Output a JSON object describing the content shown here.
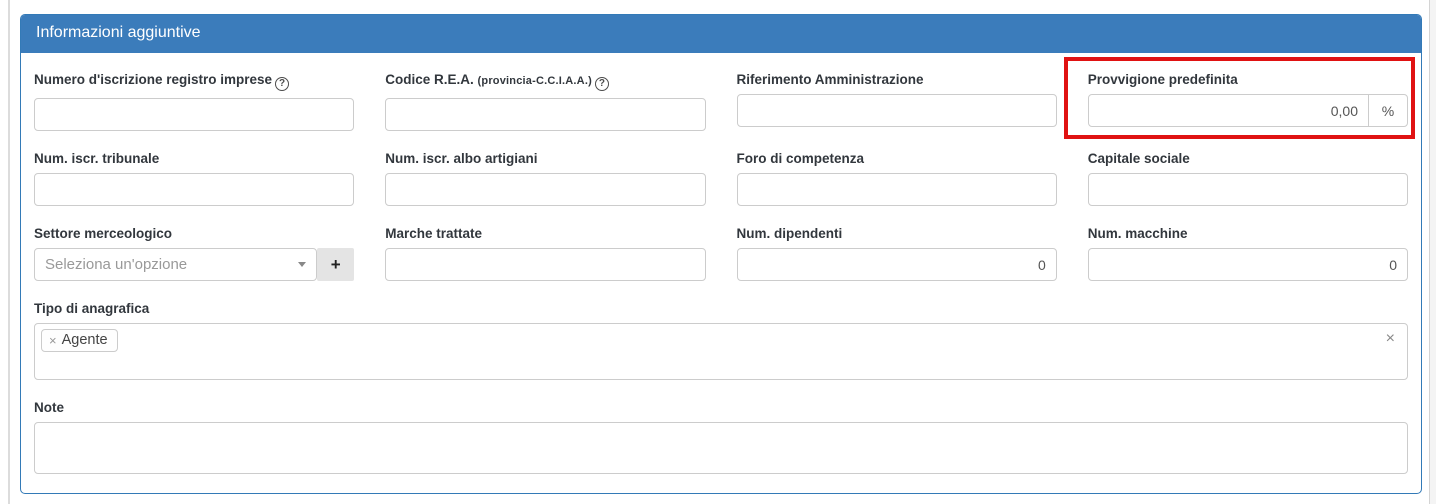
{
  "colors": {
    "header_bg": "#3b7cbb",
    "panel_border": "#337ab7",
    "highlight_red": "#e01212"
  },
  "panel": {
    "title": "Informazioni aggiuntive"
  },
  "help_icon_glyph": "?",
  "fields": {
    "registro_imprese": {
      "label": "Numero d'iscrizione registro imprese",
      "value": ""
    },
    "codice_rea": {
      "label": "Codice R.E.A.",
      "label_small": "(provincia-C.C.I.A.A.)",
      "value": ""
    },
    "riferimento_amministrazione": {
      "label": "Riferimento Amministrazione",
      "value": ""
    },
    "provvigione_predefinita": {
      "label": "Provvigione predefinita",
      "value": "0,00",
      "addon": "%"
    },
    "num_iscr_tribunale": {
      "label": "Num. iscr. tribunale",
      "value": ""
    },
    "num_iscr_albo_artigiani": {
      "label": "Num. iscr. albo artigiani",
      "value": ""
    },
    "foro_di_competenza": {
      "label": "Foro di competenza",
      "value": ""
    },
    "capitale_sociale": {
      "label": "Capitale sociale",
      "value": ""
    },
    "settore_merceologico": {
      "label": "Settore merceologico",
      "placeholder": "Seleziona un'opzione",
      "add_button": "+"
    },
    "marche_trattate": {
      "label": "Marche trattate",
      "value": ""
    },
    "num_dipendenti": {
      "label": "Num. dipendenti",
      "value": "0"
    },
    "num_macchine": {
      "label": "Num. macchine",
      "value": "0"
    },
    "tipo_anagrafica": {
      "label": "Tipo di anagrafica",
      "tags": [
        {
          "label": "Agente",
          "remove_glyph": "×"
        }
      ],
      "clear_glyph": "×"
    },
    "note": {
      "label": "Note",
      "value": ""
    }
  }
}
